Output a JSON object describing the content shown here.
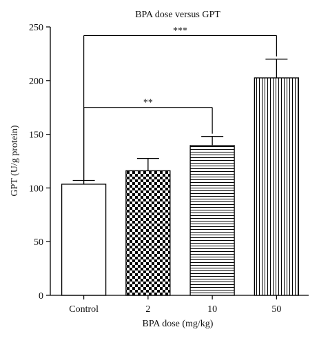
{
  "chart_data": {
    "type": "bar",
    "title": "BPA dose versus GPT",
    "xlabel": "BPA dose (mg/kg)",
    "ylabel": "GPT (U/g protein)",
    "categories": [
      "Control",
      "2",
      "10",
      "50"
    ],
    "values": [
      103.5,
      116,
      139.5,
      202.5
    ],
    "errors": [
      3.5,
      11.5,
      8.5,
      17.5
    ],
    "patterns": [
      "none",
      "checker",
      "horizontal",
      "vertical"
    ],
    "ylim": [
      0,
      250
    ],
    "yticks": [
      "0",
      "50",
      "100",
      "150",
      "200",
      "250"
    ],
    "grid": false,
    "significance": [
      {
        "from": "Control",
        "to": "50",
        "label": "***",
        "y": 242
      },
      {
        "from": "Control",
        "to": "10",
        "label": "**",
        "y": 175
      }
    ],
    "colors": {
      "bar_edge": "#000000",
      "bar_fill": "#ffffff",
      "pattern": "#000000",
      "axis": "#000000"
    }
  }
}
